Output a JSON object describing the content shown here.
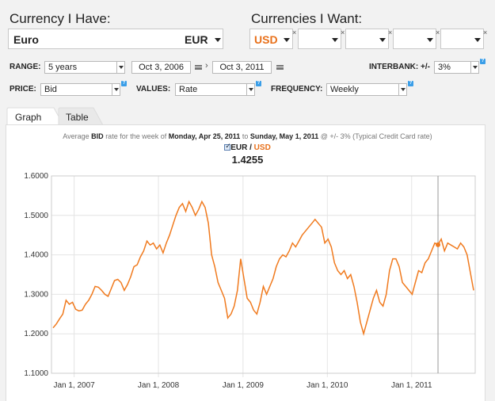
{
  "converter": {
    "have_label": "Currency I Have:",
    "want_label": "Currencies I Want:",
    "have_name": "Euro",
    "have_code": "EUR",
    "want_codes": [
      "USD",
      "",
      "",
      "",
      ""
    ]
  },
  "controls": {
    "range_label": "RANGE:",
    "range_value": "5 years",
    "start_date": "Oct 3, 2006",
    "end_date": "Oct 3, 2011",
    "interbank_label": "INTERBANK: +/-",
    "interbank_value": "3%",
    "price_label": "PRICE:",
    "price_value": "Bid",
    "values_label": "VALUES:",
    "values_value": "Rate",
    "frequency_label": "FREQUENCY:",
    "frequency_value": "Weekly",
    "help_glyph": "?"
  },
  "tabs": [
    "Graph",
    "Table"
  ],
  "chart_info": {
    "prefix": "Average",
    "price": "BID",
    "mid1": "rate for the week of",
    "week_start": "Monday, Apr 25, 2011",
    "mid2": "to",
    "week_end": "Sunday, May 1, 2011",
    "suffix": "@ +/- 3% (Typical Credit Card rate)",
    "pair_base": "EUR",
    "pair_sep": " / ",
    "pair_quote": "USD",
    "current_value": "1.4255"
  },
  "colors": {
    "series": "#f07a1e",
    "accent_orange": "#e8701a",
    "grid": "#e4e4e4"
  },
  "chart_data": {
    "type": "line",
    "title": "",
    "xlabel": "",
    "ylabel": "",
    "ylim": [
      1.1,
      1.6
    ],
    "y_ticks": [
      "1.1000",
      "1.2000",
      "1.3000",
      "1.4000",
      "1.5000",
      "1.6000"
    ],
    "x_ticks": [
      "Jan 1, 2007",
      "Jan 1, 2008",
      "Jan 1, 2009",
      "Jan 1, 2010",
      "Jan 1, 2011"
    ],
    "grid": true,
    "legend": "top-center",
    "highlight": {
      "x": "2011-04-25",
      "y": 1.4255
    },
    "series": [
      {
        "name": "EUR / USD",
        "points": [
          [
            "2006-10-02",
            1.215
          ],
          [
            "2006-10-16",
            1.225
          ],
          [
            "2006-10-30",
            1.238
          ],
          [
            "2006-11-13",
            1.25
          ],
          [
            "2006-11-27",
            1.285
          ],
          [
            "2006-12-11",
            1.275
          ],
          [
            "2006-12-25",
            1.28
          ],
          [
            "2007-01-08",
            1.262
          ],
          [
            "2007-01-22",
            1.258
          ],
          [
            "2007-02-05",
            1.26
          ],
          [
            "2007-02-19",
            1.275
          ],
          [
            "2007-03-05",
            1.285
          ],
          [
            "2007-03-19",
            1.3
          ],
          [
            "2007-04-02",
            1.32
          ],
          [
            "2007-04-16",
            1.318
          ],
          [
            "2007-04-30",
            1.31
          ],
          [
            "2007-05-14",
            1.3
          ],
          [
            "2007-05-28",
            1.295
          ],
          [
            "2007-06-11",
            1.315
          ],
          [
            "2007-06-25",
            1.335
          ],
          [
            "2007-07-09",
            1.338
          ],
          [
            "2007-07-23",
            1.33
          ],
          [
            "2007-08-06",
            1.31
          ],
          [
            "2007-08-20",
            1.325
          ],
          [
            "2007-09-03",
            1.345
          ],
          [
            "2007-09-17",
            1.37
          ],
          [
            "2007-10-01",
            1.375
          ],
          [
            "2007-10-15",
            1.395
          ],
          [
            "2007-10-29",
            1.41
          ],
          [
            "2007-11-12",
            1.435
          ],
          [
            "2007-11-26",
            1.425
          ],
          [
            "2007-12-10",
            1.43
          ],
          [
            "2007-12-24",
            1.415
          ],
          [
            "2008-01-07",
            1.425
          ],
          [
            "2008-01-21",
            1.405
          ],
          [
            "2008-02-04",
            1.43
          ],
          [
            "2008-02-18",
            1.45
          ],
          [
            "2008-03-03",
            1.475
          ],
          [
            "2008-03-17",
            1.5
          ],
          [
            "2008-03-31",
            1.52
          ],
          [
            "2008-04-14",
            1.53
          ],
          [
            "2008-04-28",
            1.51
          ],
          [
            "2008-05-12",
            1.535
          ],
          [
            "2008-05-26",
            1.52
          ],
          [
            "2008-06-09",
            1.5
          ],
          [
            "2008-06-23",
            1.515
          ],
          [
            "2008-07-07",
            1.535
          ],
          [
            "2008-07-21",
            1.52
          ],
          [
            "2008-08-04",
            1.48
          ],
          [
            "2008-08-18",
            1.4
          ],
          [
            "2008-09-01",
            1.37
          ],
          [
            "2008-09-15",
            1.33
          ],
          [
            "2008-09-29",
            1.31
          ],
          [
            "2008-10-13",
            1.29
          ],
          [
            "2008-10-27",
            1.24
          ],
          [
            "2008-11-10",
            1.25
          ],
          [
            "2008-11-24",
            1.27
          ],
          [
            "2008-12-08",
            1.31
          ],
          [
            "2008-12-22",
            1.39
          ],
          [
            "2009-01-05",
            1.34
          ],
          [
            "2009-01-19",
            1.29
          ],
          [
            "2009-02-02",
            1.28
          ],
          [
            "2009-02-16",
            1.26
          ],
          [
            "2009-03-02",
            1.25
          ],
          [
            "2009-03-16",
            1.28
          ],
          [
            "2009-03-30",
            1.32
          ],
          [
            "2009-04-13",
            1.3
          ],
          [
            "2009-04-27",
            1.32
          ],
          [
            "2009-05-11",
            1.34
          ],
          [
            "2009-05-25",
            1.37
          ],
          [
            "2009-06-08",
            1.39
          ],
          [
            "2009-06-22",
            1.4
          ],
          [
            "2009-07-06",
            1.395
          ],
          [
            "2009-07-20",
            1.41
          ],
          [
            "2009-08-03",
            1.43
          ],
          [
            "2009-08-17",
            1.42
          ],
          [
            "2009-08-31",
            1.435
          ],
          [
            "2009-09-14",
            1.45
          ],
          [
            "2009-09-28",
            1.46
          ],
          [
            "2009-10-12",
            1.47
          ],
          [
            "2009-10-26",
            1.48
          ],
          [
            "2009-11-09",
            1.49
          ],
          [
            "2009-11-23",
            1.48
          ],
          [
            "2009-12-07",
            1.47
          ],
          [
            "2009-12-21",
            1.43
          ],
          [
            "2010-01-04",
            1.44
          ],
          [
            "2010-01-18",
            1.42
          ],
          [
            "2010-02-01",
            1.38
          ],
          [
            "2010-02-15",
            1.36
          ],
          [
            "2010-03-01",
            1.35
          ],
          [
            "2010-03-15",
            1.36
          ],
          [
            "2010-03-29",
            1.34
          ],
          [
            "2010-04-12",
            1.35
          ],
          [
            "2010-04-26",
            1.32
          ],
          [
            "2010-05-10",
            1.28
          ],
          [
            "2010-05-24",
            1.23
          ],
          [
            "2010-06-07",
            1.2
          ],
          [
            "2010-06-21",
            1.23
          ],
          [
            "2010-07-05",
            1.26
          ],
          [
            "2010-07-19",
            1.29
          ],
          [
            "2010-08-02",
            1.31
          ],
          [
            "2010-08-16",
            1.28
          ],
          [
            "2010-08-30",
            1.27
          ],
          [
            "2010-09-13",
            1.3
          ],
          [
            "2010-09-27",
            1.36
          ],
          [
            "2010-10-11",
            1.39
          ],
          [
            "2010-10-25",
            1.39
          ],
          [
            "2010-11-08",
            1.37
          ],
          [
            "2010-11-22",
            1.33
          ],
          [
            "2010-12-06",
            1.32
          ],
          [
            "2010-12-20",
            1.31
          ],
          [
            "2011-01-03",
            1.3
          ],
          [
            "2011-01-17",
            1.33
          ],
          [
            "2011-01-31",
            1.36
          ],
          [
            "2011-02-14",
            1.355
          ],
          [
            "2011-02-28",
            1.38
          ],
          [
            "2011-03-14",
            1.39
          ],
          [
            "2011-03-28",
            1.41
          ],
          [
            "2011-04-11",
            1.43
          ],
          [
            "2011-04-25",
            1.4255
          ],
          [
            "2011-05-09",
            1.44
          ],
          [
            "2011-05-23",
            1.41
          ],
          [
            "2011-06-06",
            1.43
          ],
          [
            "2011-06-20",
            1.425
          ],
          [
            "2011-07-04",
            1.42
          ],
          [
            "2011-07-18",
            1.415
          ],
          [
            "2011-08-01",
            1.43
          ],
          [
            "2011-08-15",
            1.42
          ],
          [
            "2011-08-29",
            1.4
          ],
          [
            "2011-09-12",
            1.355
          ],
          [
            "2011-09-26",
            1.31
          ]
        ]
      }
    ]
  }
}
